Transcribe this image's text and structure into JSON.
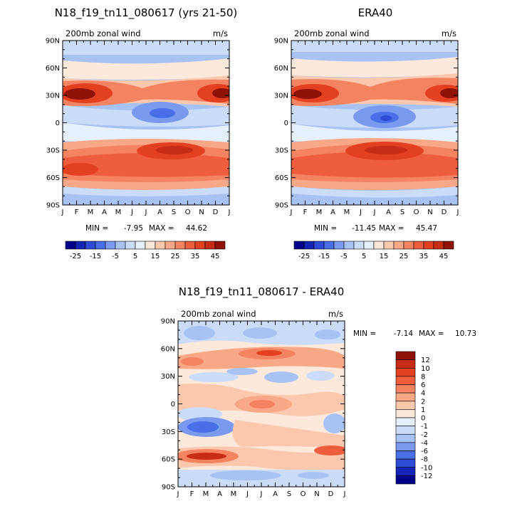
{
  "chart_data": [
    {
      "type": "heatmap",
      "title": "N18_f19_tn11_080617 (yrs 21-50)",
      "subtitle_left": "200mb zonal wind",
      "subtitle_right": "m/s",
      "x_ticks": [
        "J",
        "F",
        "M",
        "A",
        "M",
        "J",
        "J",
        "A",
        "S",
        "O",
        "N",
        "D",
        "J"
      ],
      "y_ticks": [
        "90N",
        "60N",
        "30N",
        "0",
        "30S",
        "60S",
        "90S"
      ],
      "min_label": "MIN =",
      "min_value": "-7.95",
      "max_label": "MAX =",
      "max_value": "44.62",
      "colorbar_labels": [
        "-25",
        "-15",
        "-5",
        "5",
        "15",
        "25",
        "35",
        "45"
      ],
      "colorbar_levels": [
        -30,
        -25,
        -20,
        -15,
        -10,
        -5,
        0,
        5,
        10,
        15,
        20,
        25,
        30,
        35,
        40,
        45,
        50
      ],
      "colors": [
        "#00008b",
        "#1424b4",
        "#2e4cd8",
        "#4a6ee8",
        "#7a9af0",
        "#a9c2f4",
        "#cadcf8",
        "#e6f0fc",
        "#fde8dc",
        "#fbc8ae",
        "#f8a887",
        "#f48362",
        "#ee5e3e",
        "#e34022",
        "#c72c14",
        "#8e1208"
      ]
    },
    {
      "type": "heatmap",
      "title": "ERA40",
      "subtitle_left": "200mb zonal wind",
      "subtitle_right": "m/s",
      "x_ticks": [
        "J",
        "F",
        "M",
        "A",
        "M",
        "J",
        "J",
        "A",
        "S",
        "O",
        "N",
        "D",
        "J"
      ],
      "y_ticks": [
        "90N",
        "60N",
        "30N",
        "0",
        "30S",
        "60S",
        "90S"
      ],
      "min_label": "MIN =",
      "min_value": "-11.45",
      "max_label": "MAX =",
      "max_value": "45.47",
      "colorbar_labels": [
        "-25",
        "-15",
        "-5",
        "5",
        "15",
        "25",
        "35",
        "45"
      ]
    },
    {
      "type": "heatmap",
      "title": "N18_f19_tn11_080617 - ERA40",
      "subtitle_left": "200mb zonal wind",
      "subtitle_right": "m/s",
      "x_ticks": [
        "J",
        "F",
        "M",
        "A",
        "M",
        "J",
        "J",
        "A",
        "S",
        "O",
        "N",
        "D",
        "J"
      ],
      "y_ticks": [
        "90N",
        "60N",
        "30N",
        "0",
        "30S",
        "60S",
        "90S"
      ],
      "min_label": "MIN =",
      "min_value": "-7.14",
      "max_label": "MAX =",
      "max_value": "10.73",
      "colorbar_labels": [
        "12",
        "10",
        "8",
        "6",
        "4",
        "2",
        "1",
        "0",
        "-1",
        "-2",
        "-4",
        "-6",
        "-8",
        "-10",
        "-12"
      ],
      "colorbar_levels": [
        -14,
        -12,
        -10,
        -8,
        -6,
        -4,
        -2,
        -1,
        0,
        1,
        2,
        4,
        6,
        8,
        10,
        12,
        14
      ],
      "colors": [
        "#00008b",
        "#1424b4",
        "#2e4cd8",
        "#4a6ee8",
        "#7a9af0",
        "#a9c2f4",
        "#cadcf8",
        "#e6f0fc",
        "#fde8dc",
        "#fbc8ae",
        "#f8a887",
        "#f48362",
        "#ee5e3e",
        "#e34022",
        "#c72c14",
        "#8e1208"
      ]
    }
  ]
}
